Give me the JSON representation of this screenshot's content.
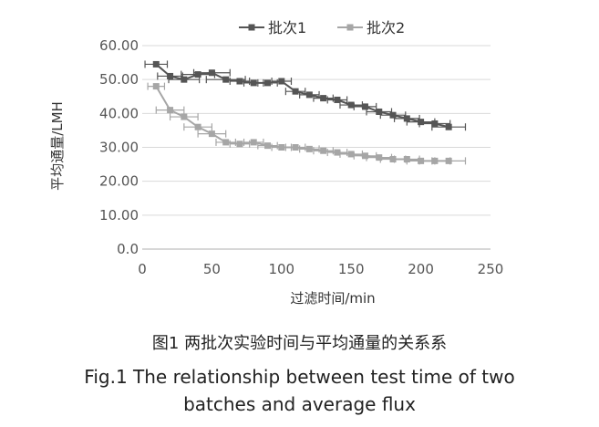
{
  "chart_data": {
    "type": "line",
    "xlabel": "过滤时间/min",
    "ylabel": "平均通量/LMH",
    "xlim": [
      0,
      250
    ],
    "ylim": [
      0,
      60
    ],
    "x_ticks": [
      "0",
      "50",
      "100",
      "150",
      "200",
      "250"
    ],
    "y_ticks": [
      "0.0",
      "10.00",
      "20.00",
      "30.00",
      "40.00",
      "50.00",
      "60.00"
    ],
    "grid": "horizontal",
    "legend_position": "top-center",
    "error_bars": "horizontal",
    "series": [
      {
        "name": "批次1",
        "color": "#555555",
        "marker": "square",
        "x": [
          10,
          20,
          30,
          40,
          50,
          60,
          70,
          80,
          90,
          100,
          110,
          120,
          130,
          140,
          150,
          160,
          170,
          180,
          190,
          200,
          210,
          220
        ],
        "y": [
          54.5,
          51.0,
          50.0,
          51.5,
          52.0,
          50.0,
          49.5,
          49.0,
          49.0,
          49.5,
          46.5,
          45.5,
          44.5,
          44.0,
          42.5,
          42.0,
          40.5,
          39.5,
          38.5,
          37.5,
          37.0,
          36.0
        ],
        "xerr": [
          8,
          9,
          11,
          12,
          13,
          14,
          7,
          7,
          7,
          7,
          7,
          7,
          7,
          7,
          8,
          8,
          9,
          9,
          9,
          10,
          11,
          12
        ]
      },
      {
        "name": "批次2",
        "color": "#a6a6a6",
        "marker": "square",
        "x": [
          10,
          20,
          30,
          40,
          50,
          60,
          70,
          80,
          90,
          100,
          110,
          120,
          130,
          140,
          150,
          160,
          170,
          180,
          190,
          200,
          210,
          220
        ],
        "y": [
          48.0,
          41.0,
          39.0,
          36.0,
          34.0,
          31.5,
          31.0,
          31.5,
          30.5,
          30.0,
          30.0,
          29.5,
          29.0,
          28.5,
          28.0,
          27.5,
          27.0,
          26.5,
          26.5,
          26.0,
          26.0,
          26.0
        ],
        "xerr": [
          6,
          10,
          10,
          10,
          10,
          7,
          7,
          7,
          7,
          7,
          7,
          7,
          7,
          7,
          8,
          8,
          9,
          9,
          9,
          10,
          11,
          12
        ]
      }
    ]
  },
  "caption": {
    "cn": "图1 两批次实验时间与平均通量的关系系",
    "en_line1": "Fig.1 The relationship between test time of two",
    "en_line2": "batches and average flux"
  }
}
